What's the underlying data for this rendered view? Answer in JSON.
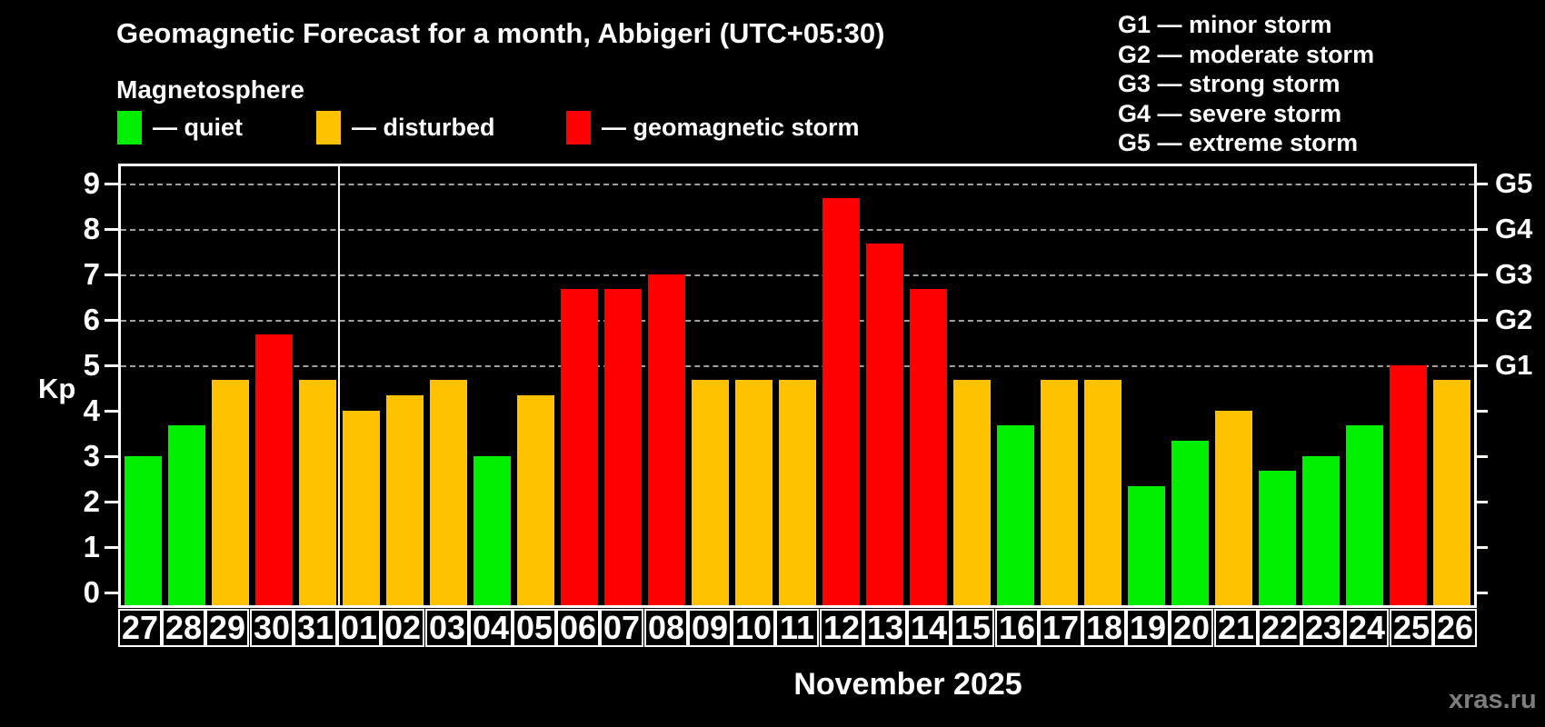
{
  "header": {
    "title": "Geomagnetic Forecast for a month, Abbigeri (UTC+05:30)",
    "subtitle": "Magnetosphere"
  },
  "legend": [
    {
      "key": "quiet",
      "label": "— quiet",
      "color": "#00ee00"
    },
    {
      "key": "disturbed",
      "label": "— disturbed",
      "color": "#ffc100"
    },
    {
      "key": "storm",
      "label": "— geomagnetic storm",
      "color": "#ff0000"
    }
  ],
  "g_scale_legend": [
    {
      "code": "G1",
      "label": "G1 — minor storm"
    },
    {
      "code": "G2",
      "label": "G2 — moderate storm"
    },
    {
      "code": "G3",
      "label": "G3 — strong storm"
    },
    {
      "code": "G4",
      "label": "G4 — severe storm"
    },
    {
      "code": "G5",
      "label": "G5 — extreme storm"
    }
  ],
  "axes": {
    "y_label": "Kp",
    "y_ticks": [
      0,
      1,
      2,
      3,
      4,
      5,
      6,
      7,
      8,
      9
    ],
    "right_axis_labels": [
      {
        "label": "G1",
        "kp": 5
      },
      {
        "label": "G2",
        "kp": 6
      },
      {
        "label": "G3",
        "kp": 7
      },
      {
        "label": "G4",
        "kp": 8
      },
      {
        "label": "G5",
        "kp": 9
      }
    ],
    "x_axis_title": "November 2025"
  },
  "watermark": "xras.ru",
  "colors": {
    "background": "#000000",
    "text": "#ffffff",
    "frame": "#ffffff",
    "grid": "#a0a0a0",
    "watermark": "#7e7e7e"
  },
  "chart_data": {
    "type": "bar",
    "title": "Geomagnetic Forecast for a month, Abbigeri (UTC+05:30)",
    "xlabel": "November 2025",
    "ylabel": "Kp",
    "ylim": [
      0,
      9.4
    ],
    "grid": {
      "horizontal_dashed_at_kp": [
        5,
        6,
        7,
        8,
        9
      ]
    },
    "legend_position": "top-left",
    "g_levels": {
      "G1": 5,
      "G2": 6,
      "G3": 7,
      "G4": 8,
      "G5": 9
    },
    "month_separator_after_category": "31",
    "categories": [
      "27",
      "28",
      "29",
      "30",
      "31",
      "01",
      "02",
      "03",
      "04",
      "05",
      "06",
      "07",
      "08",
      "09",
      "10",
      "11",
      "12",
      "13",
      "14",
      "15",
      "16",
      "17",
      "18",
      "19",
      "20",
      "21",
      "22",
      "23",
      "24",
      "25",
      "26"
    ],
    "values": [
      3.0,
      3.67,
      4.67,
      5.67,
      4.67,
      4.0,
      4.33,
      4.67,
      3.0,
      4.33,
      6.67,
      6.67,
      7.0,
      4.67,
      4.67,
      4.67,
      8.67,
      7.67,
      6.67,
      4.67,
      3.67,
      4.67,
      4.67,
      2.33,
      3.33,
      4.0,
      2.67,
      3.0,
      3.67,
      5.0,
      4.67
    ],
    "statuses": [
      "quiet",
      "quiet",
      "disturbed",
      "storm",
      "disturbed",
      "disturbed",
      "disturbed",
      "disturbed",
      "quiet",
      "disturbed",
      "storm",
      "storm",
      "storm",
      "disturbed",
      "disturbed",
      "disturbed",
      "storm",
      "storm",
      "storm",
      "disturbed",
      "quiet",
      "disturbed",
      "disturbed",
      "quiet",
      "quiet",
      "disturbed",
      "quiet",
      "quiet",
      "quiet",
      "storm",
      "disturbed"
    ]
  }
}
